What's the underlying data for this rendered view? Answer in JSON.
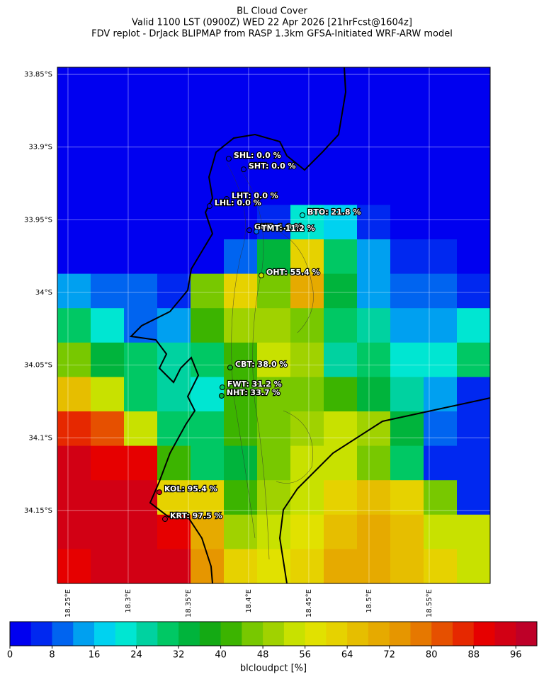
{
  "map": {
    "type": "raster",
    "title_lines": [
      "BL Cloud Cover",
      "Valid 1100 LST (0900Z) WED 22 Apr 2026 [21hrFcst@1604z]",
      "FDV replot - DrJack BLIPMAP from RASP 1.3km GFSA-Initiated WRF-ARW model"
    ],
    "xlim": [
      18.2412,
      18.6006
    ],
    "ylim": [
      -34.2002,
      -33.8451
    ],
    "xticks": [
      {
        "value": 18.25,
        "label": "18.25°E"
      },
      {
        "value": 18.3,
        "label": "18.3°E"
      },
      {
        "value": 18.35,
        "label": "18.35°E"
      },
      {
        "value": 18.4,
        "label": "18.4°E"
      },
      {
        "value": 18.45,
        "label": "18.45°E"
      },
      {
        "value": 18.5,
        "label": "18.5°E"
      },
      {
        "value": 18.55,
        "label": "18.55°E"
      }
    ],
    "yticks": [
      {
        "value": -33.85,
        "label": "33.85°S"
      },
      {
        "value": -33.9,
        "label": "33.9°S"
      },
      {
        "value": -33.95,
        "label": "33.95°S"
      },
      {
        "value": -34.0,
        "label": "34°S"
      },
      {
        "value": -34.05,
        "label": "34.05°S"
      },
      {
        "value": -34.1,
        "label": "34.1°S"
      },
      {
        "value": -34.15,
        "label": "34.15°S"
      }
    ],
    "grid": true,
    "cloud_cover": [
      [
        0,
        0,
        0,
        0,
        0,
        0,
        0,
        0,
        0,
        0,
        0,
        0,
        0
      ],
      [
        0,
        0,
        0,
        0,
        0,
        0,
        0,
        0,
        0,
        0,
        0,
        0,
        0
      ],
      [
        0,
        0,
        0,
        0,
        0,
        0,
        0,
        0,
        0,
        0,
        0,
        0,
        0
      ],
      [
        0,
        0,
        0,
        0,
        0,
        0,
        0,
        0,
        0,
        0,
        0,
        0,
        0
      ],
      [
        0,
        0,
        0,
        0,
        0,
        0,
        5,
        22,
        18,
        5,
        0,
        0,
        0
      ],
      [
        0,
        0,
        0,
        0,
        0,
        10,
        35,
        60,
        30,
        15,
        5,
        5,
        0
      ],
      [
        15,
        8,
        10,
        5,
        45,
        60,
        45,
        70,
        35,
        15,
        8,
        8,
        5
      ],
      [
        30,
        20,
        8,
        15,
        40,
        50,
        50,
        45,
        30,
        25,
        15,
        15,
        20
      ],
      [
        45,
        35,
        28,
        25,
        30,
        40,
        55,
        50,
        25,
        28,
        20,
        22,
        30
      ],
      [
        65,
        55,
        30,
        25,
        20,
        42,
        45,
        45,
        42,
        35,
        25,
        15,
        5
      ],
      [
        85,
        80,
        55,
        30,
        30,
        40,
        45,
        50,
        55,
        50,
        35,
        10,
        5
      ],
      [
        92,
        90,
        90,
        40,
        30,
        35,
        45,
        55,
        55,
        45,
        30,
        5,
        5
      ],
      [
        94,
        94,
        95,
        60,
        60,
        40,
        48,
        55,
        60,
        64,
        62,
        45,
        5
      ],
      [
        92,
        95,
        95,
        90,
        70,
        50,
        55,
        58,
        65,
        70,
        64,
        55,
        52
      ],
      [
        88,
        95,
        95,
        95,
        75,
        60,
        56,
        62,
        70,
        68,
        66,
        62,
        55
      ]
    ],
    "stations": {
      "lon": [
        18.3835,
        18.3959,
        18.3818,
        18.3676,
        18.4447,
        18.4006,
        18.4065,
        18.4106,
        18.3847,
        18.3782,
        18.3776,
        18.3259,
        18.3306
      ],
      "lat": [
        -33.908,
        -33.9153,
        -33.9357,
        -33.9406,
        -33.9469,
        -33.9572,
        -33.9581,
        -33.9883,
        -34.0517,
        -34.0653,
        -34.0711,
        -34.1374,
        -34.1559
      ],
      "values": [
        0.0,
        0.0,
        0.0,
        0.0,
        21.8,
        1.9,
        11.2,
        55.4,
        38.0,
        31.2,
        33.7,
        95.4,
        97.5
      ],
      "value_labels": [
        "SHL: 0.0 %",
        "SHT: 0.0 %",
        "LHT: 0.0 %",
        "LHL: 0.0 %",
        "BTO: 21.8 %",
        "GUT: 1.9 %",
        "TMT: 11.2 %",
        "OHT: 55.4 %",
        "CBT: 38.0 %",
        "FWT: 31.2 %",
        "NHT: 33.7 %",
        "KOL: 95.4 %",
        "KRT: 97.5 %"
      ]
    },
    "colorbar": {
      "clim": [
        0,
        100
      ],
      "ticks": [
        0,
        8,
        16,
        24,
        32,
        40,
        48,
        56,
        64,
        72,
        80,
        88,
        96
      ],
      "label": "blcloudpct [%]",
      "colors": [
        "#0000f0",
        "#0028f0",
        "#0064f0",
        "#00a0f0",
        "#00d2f0",
        "#00e6d2",
        "#00d2a0",
        "#00c864",
        "#00b43c",
        "#14aa14",
        "#3cb400",
        "#78c800",
        "#a0d200",
        "#c8e100",
        "#e1e100",
        "#e6d200",
        "#e6be00",
        "#e6aa00",
        "#e69600",
        "#e67800",
        "#e65000",
        "#e62800",
        "#e60000",
        "#d20014",
        "#be0028"
      ]
    }
  }
}
